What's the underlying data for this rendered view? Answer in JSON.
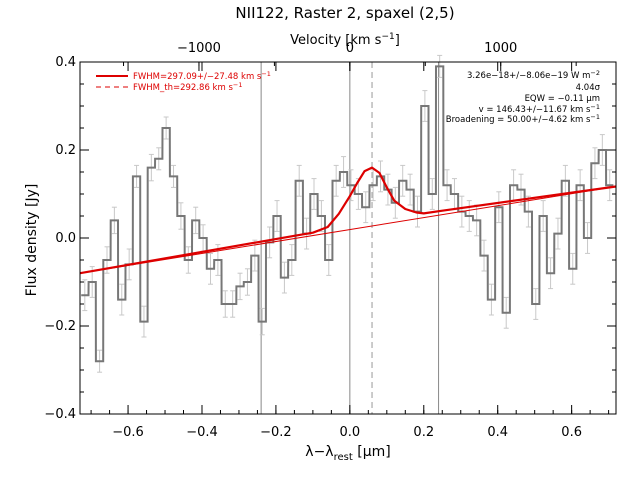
{
  "chart_data": {
    "type": "line",
    "title": "NII122, Raster 2, spaxel (2,5)",
    "xlabel": "λ-λ_rest [μm]",
    "xlabel_main": "λ−λ",
    "xlabel_sub": "rest",
    "xlabel_unit": " [μm]",
    "ylabel": "Flux density [Jy]",
    "top_axis_label": "Velocity [km s⁻¹]",
    "top_axis_label_main": "Velocity [km s",
    "top_axis_label_sup": "−1",
    "top_axis_label_end": "]",
    "xlim": [
      -0.73,
      0.72
    ],
    "ylim": [
      -0.4,
      0.4
    ],
    "x_ticks": [
      -0.6,
      -0.4,
      -0.2,
      0.0,
      0.2,
      0.4,
      0.6
    ],
    "x_tick_labels": [
      "−0.6",
      "−0.4",
      "−0.2",
      "0.0",
      "0.2",
      "0.4",
      "0.6"
    ],
    "y_ticks": [
      -0.4,
      -0.2,
      0.0,
      0.2,
      0.4
    ],
    "y_tick_labels": [
      "−0.4",
      "−0.2",
      "0.0",
      "0.2",
      "0.4"
    ],
    "top_ticks_velocity": [
      -1000,
      0,
      1000
    ],
    "top_tick_labels": [
      "−1000",
      "0",
      "1000"
    ],
    "vertical_lines_x": [
      -0.24,
      0.0,
      0.24
    ],
    "dashed_line_x": 0.06,
    "series": [
      {
        "kind": "histogram-with-errors",
        "color": "#777777",
        "x": [
          -0.717,
          -0.697,
          -0.677,
          -0.657,
          -0.637,
          -0.617,
          -0.597,
          -0.577,
          -0.557,
          -0.537,
          -0.517,
          -0.497,
          -0.477,
          -0.457,
          -0.437,
          -0.417,
          -0.397,
          -0.377,
          -0.357,
          -0.337,
          -0.317,
          -0.297,
          -0.277,
          -0.257,
          -0.237,
          -0.217,
          -0.197,
          -0.177,
          -0.157,
          -0.137,
          -0.117,
          -0.097,
          -0.077,
          -0.057,
          -0.037,
          -0.017,
          0.003,
          0.023,
          0.043,
          0.063,
          0.083,
          0.103,
          0.123,
          0.143,
          0.163,
          0.183,
          0.203,
          0.223,
          0.243,
          0.263,
          0.283,
          0.303,
          0.323,
          0.343,
          0.363,
          0.383,
          0.403,
          0.423,
          0.443,
          0.463,
          0.483,
          0.503,
          0.523,
          0.543,
          0.563,
          0.583,
          0.603,
          0.623,
          0.643,
          0.663,
          0.683,
          0.703
        ],
        "values": [
          -0.13,
          -0.1,
          -0.28,
          -0.05,
          0.04,
          -0.14,
          -0.06,
          0.14,
          -0.19,
          0.16,
          0.18,
          0.25,
          0.14,
          0.05,
          -0.05,
          0.04,
          0.0,
          -0.07,
          -0.05,
          -0.15,
          -0.15,
          -0.11,
          -0.1,
          -0.04,
          -0.19,
          -0.01,
          0.05,
          -0.09,
          -0.05,
          0.13,
          0.01,
          0.1,
          0.05,
          -0.05,
          0.13,
          0.15,
          0.12,
          0.1,
          0.07,
          0.12,
          0.14,
          0.11,
          0.08,
          0.13,
          0.11,
          0.06,
          0.3,
          0.1,
          0.39,
          0.12,
          0.1,
          0.06,
          0.05,
          0.04,
          -0.04,
          -0.14,
          0.07,
          -0.17,
          0.12,
          0.11,
          0.06,
          -0.15,
          0.05,
          -0.08,
          0.01,
          0.13,
          -0.07,
          0.12,
          0.0,
          0.17,
          0.2,
          0.12
        ],
        "errors": [
          0.035,
          0.035,
          0.025,
          0.03,
          0.03,
          0.035,
          0.035,
          0.025,
          0.035,
          0.03,
          0.025,
          0.025,
          0.025,
          0.03,
          0.03,
          0.03,
          0.03,
          0.035,
          0.035,
          0.03,
          0.03,
          0.03,
          0.03,
          0.035,
          0.03,
          0.035,
          0.035,
          0.035,
          0.035,
          0.035,
          0.035,
          0.035,
          0.035,
          0.035,
          0.035,
          0.035,
          0.035,
          0.035,
          0.035,
          0.035,
          0.035,
          0.035,
          0.035,
          0.035,
          0.035,
          0.035,
          0.035,
          0.035,
          0.025,
          0.035,
          0.035,
          0.035,
          0.035,
          0.035,
          0.035,
          0.035,
          0.035,
          0.035,
          0.035,
          0.035,
          0.035,
          0.035,
          0.035,
          0.035,
          0.035,
          0.035,
          0.035,
          0.035,
          0.035,
          0.035,
          0.035,
          0.035
        ]
      },
      {
        "kind": "continuum",
        "color": "#dd0000",
        "x": [
          -0.73,
          0.72
        ],
        "values": [
          -0.08,
          0.117
        ]
      },
      {
        "kind": "gaussian-fit",
        "color": "#dd0000",
        "x": [
          -0.73,
          -0.15,
          -0.1,
          -0.06,
          -0.03,
          0.0,
          0.02,
          0.04,
          0.06,
          0.08,
          0.1,
          0.12,
          0.15,
          0.18,
          0.2,
          0.25,
          0.72
        ],
        "values": [
          -0.08,
          0.005,
          0.012,
          0.025,
          0.055,
          0.095,
          0.125,
          0.152,
          0.16,
          0.148,
          0.115,
          0.085,
          0.066,
          0.058,
          0.056,
          0.062,
          0.117
        ]
      }
    ],
    "legend": {
      "placement": "top-left",
      "items": [
        {
          "label": "FWHM=297.09+/−27.48 km s",
          "sup": "−1",
          "style": "solid",
          "color": "#dd0000"
        },
        {
          "label": "FWHM_th=292.86 km s",
          "sup": "−1",
          "style": "dashed",
          "color": "#dd0000"
        }
      ]
    },
    "annotations": [
      {
        "main": "3.26e−18+/−8.06e−19 W m",
        "sup": "−2"
      },
      {
        "main": "4.04σ",
        "sup": ""
      },
      {
        "main": "EQW = −0.11 μm",
        "sup": ""
      },
      {
        "main": "v = 146.43+/−11.67 km s",
        "sup": "−1"
      },
      {
        "main": "Broadening = 50.00+/−4.62 km s",
        "sup": "−1"
      }
    ],
    "grid": false
  }
}
